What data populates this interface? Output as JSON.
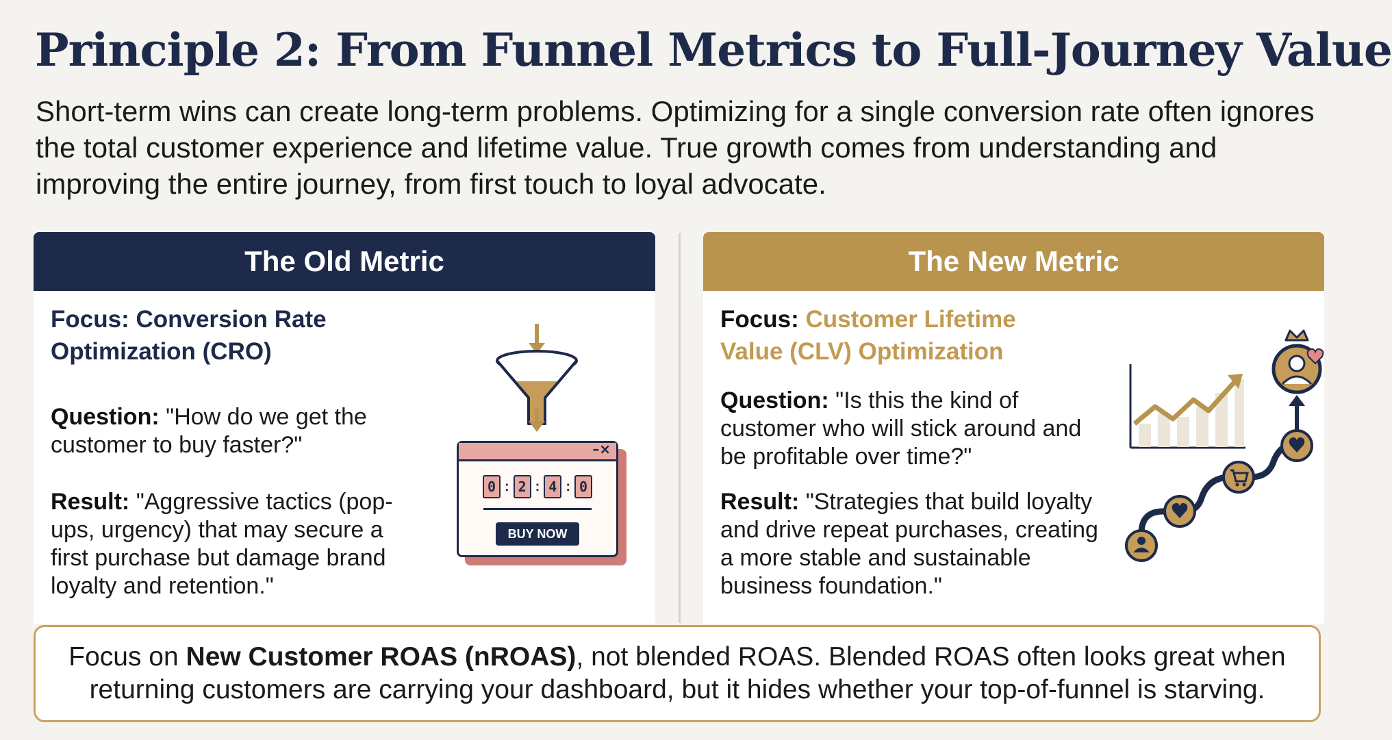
{
  "title": "Principle 2: From Funnel Metrics to Full-Journey Value",
  "intro": "Short-term wins can create long-term problems. Optimizing for a single conversion rate often ignores the total customer experience and lifetime value. True growth comes from understanding and improving the entire journey, from first touch to loyal advocate.",
  "old": {
    "header": "The Old Metric",
    "focus_label": "Focus:",
    "focus_value": "Conversion Rate Optimization (CRO)",
    "question_label": "Question:",
    "question_text": "\"How do we get the customer to buy faster?\"",
    "result_label": "Result:",
    "result_text": "\"Aggressive tactics (pop-ups, urgency) that may secure a first purchase but damage brand loyalty and retention.\"",
    "timer_digits": [
      "0",
      "2",
      "4",
      "0"
    ],
    "popup_window_controls": "–×",
    "buy_button": "BUY NOW"
  },
  "new": {
    "header": "The New Metric",
    "focus_label": "Focus:",
    "focus_value": "Customer Lifetime Value (CLV) Optimization",
    "question_label": "Question:",
    "question_text": "\"Is this the kind of customer who will stick around and be profitable over time?\"",
    "result_label": "Result:",
    "result_text": "\"Strategies that build loyalty and drive repeat purchases, creating a more stable and sustainable business foundation.\""
  },
  "callout": {
    "pre": "Focus on ",
    "bold": "New Customer ROAS (nROAS)",
    "post": ", not blended ROAS. Blended ROAS often looks great when returning customers are carrying your dashboard, but it hides whether your top-of-funnel is starving."
  },
  "colors": {
    "navy": "#1e2a4a",
    "gold": "#b8944f",
    "gold_text": "#c39a52",
    "popup_red": "#cf7b75",
    "background": "#f4f3ef"
  },
  "icons": [
    "funnel-icon",
    "popup-timer-icon",
    "growth-chart-icon",
    "customer-journey-icon",
    "crown-icon",
    "heart-icon",
    "cart-icon",
    "user-icon"
  ]
}
